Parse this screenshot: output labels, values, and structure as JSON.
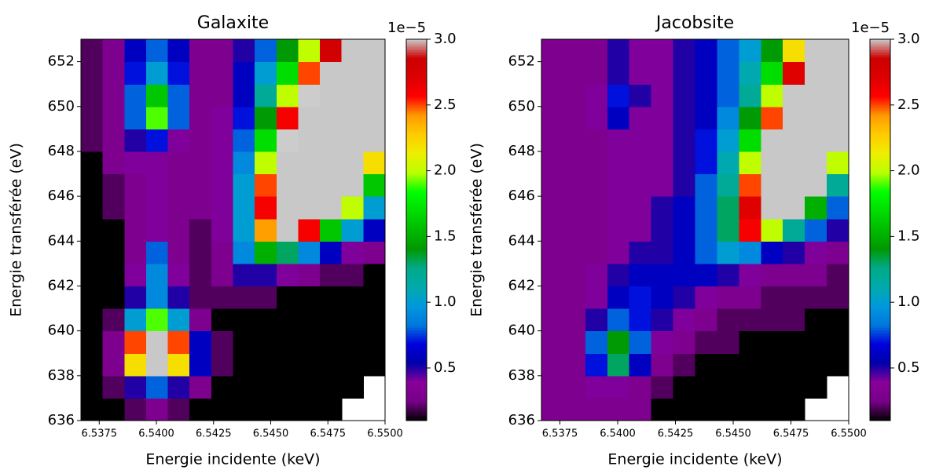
{
  "chart_data": [
    {
      "type": "heatmap",
      "title": "Galaxite",
      "xlabel": "Energie incidente (keV)",
      "ylabel": "Energie transférée (eV)",
      "colormap": "nipy_spectral",
      "over_color": "#c8c8c8",
      "xlim": [
        6.5367,
        6.55
      ],
      "ylim": [
        636,
        653
      ],
      "xticks": [
        6.5375,
        {
          "value": 6.54,
          "label": "6.5400"
        },
        6.5425,
        {
          "value": 6.545,
          "label": "6.5450"
        },
        6.5475,
        {
          "value": 6.55,
          "label": "6.5500"
        }
      ],
      "yticks": [
        636,
        638,
        640,
        642,
        644,
        646,
        648,
        650,
        652
      ],
      "x_edges": [
        6.5367,
        6.53765,
        6.5386,
        6.53955,
        6.5405,
        6.54145,
        6.5424,
        6.54335,
        6.5443,
        6.54525,
        6.5462,
        6.54715,
        6.5481,
        6.54905,
        6.55
      ],
      "y_edges": [
        636,
        637,
        638,
        639,
        640,
        641,
        642,
        643,
        644,
        645,
        646,
        647,
        648,
        649,
        650,
        651,
        652,
        653
      ],
      "clim": [
        0.1,
        3.0
      ],
      "colorbar_offset": "1e−5",
      "cticks": [
        {
          "value": 0.5,
          "label": "0.5"
        },
        {
          "value": 1.0,
          "label": "1.0"
        },
        {
          "value": 1.5,
          "label": "1.5"
        },
        {
          "value": 2.0,
          "label": "2.0"
        },
        {
          "value": 2.5,
          "label": "2.5"
        },
        {
          "value": 3.0,
          "label": "3.0"
        }
      ],
      "values": [
        [
          0.05,
          0.1,
          0.2,
          0.3,
          0.2,
          0.1,
          0.05,
          0.05,
          0.05,
          0.05,
          0.05,
          0.05,
          null,
          null
        ],
        [
          0.05,
          0.2,
          0.5,
          0.8,
          0.5,
          0.3,
          0.05,
          0.05,
          0.05,
          0.05,
          0.05,
          0.05,
          0.05,
          null
        ],
        [
          0.1,
          0.3,
          2.2,
          3.5,
          2.2,
          0.6,
          0.2,
          0.05,
          0.05,
          0.05,
          0.05,
          0.05,
          0.05,
          0.05
        ],
        [
          0.1,
          0.3,
          2.5,
          3.5,
          2.5,
          0.6,
          0.2,
          0.05,
          0.05,
          0.05,
          0.05,
          0.05,
          0.05,
          0.05
        ],
        [
          0.05,
          0.2,
          1.0,
          1.9,
          1.0,
          0.3,
          0.1,
          0.05,
          0.05,
          0.05,
          0.05,
          0.05,
          0.05,
          0.05
        ],
        [
          0.05,
          0.1,
          0.5,
          0.9,
          0.5,
          0.2,
          0.2,
          0.2,
          0.2,
          0.1,
          0.1,
          0.1,
          0.1,
          0.1
        ],
        [
          0.05,
          0.1,
          0.4,
          0.9,
          0.4,
          0.2,
          0.3,
          0.5,
          0.5,
          0.4,
          0.3,
          0.2,
          0.2,
          0.1
        ],
        [
          0.05,
          0.1,
          0.3,
          0.8,
          0.3,
          0.2,
          0.3,
          0.9,
          1.5,
          1.3,
          0.9,
          0.6,
          0.4,
          0.3
        ],
        [
          0.1,
          0.1,
          0.3,
          0.4,
          0.3,
          0.2,
          0.4,
          1.0,
          2.4,
          3.5,
          2.6,
          1.6,
          1.0,
          0.6
        ],
        [
          0.1,
          0.2,
          0.3,
          0.4,
          0.3,
          0.3,
          0.4,
          1.0,
          2.6,
          3.5,
          3.5,
          3.5,
          2.0,
          1.0
        ],
        [
          0.1,
          0.2,
          0.3,
          0.4,
          0.3,
          0.3,
          0.4,
          1.0,
          2.5,
          3.5,
          3.5,
          3.5,
          3.5,
          1.6
        ],
        [
          0.1,
          0.3,
          0.4,
          0.4,
          0.3,
          0.3,
          0.4,
          0.9,
          2.0,
          3.5,
          3.5,
          3.5,
          3.5,
          2.2
        ],
        [
          0.2,
          0.3,
          0.5,
          0.7,
          0.4,
          0.3,
          0.4,
          0.8,
          1.7,
          3.0,
          3.5,
          3.5,
          3.5,
          3.5
        ],
        [
          0.2,
          0.3,
          0.8,
          1.9,
          0.8,
          0.3,
          0.4,
          0.7,
          1.4,
          2.6,
          3.5,
          3.5,
          3.5,
          3.5
        ],
        [
          0.2,
          0.3,
          0.8,
          1.6,
          0.8,
          0.3,
          0.3,
          0.6,
          1.2,
          2.0,
          3.0,
          3.5,
          3.5,
          3.5
        ],
        [
          0.2,
          0.3,
          0.7,
          1.0,
          0.7,
          0.3,
          0.3,
          0.6,
          1.0,
          1.7,
          2.5,
          3.5,
          3.5,
          3.5
        ],
        [
          0.2,
          0.3,
          0.6,
          0.8,
          0.6,
          0.3,
          0.3,
          0.5,
          0.8,
          1.4,
          2.0,
          2.8,
          3.5,
          3.5
        ]
      ]
    },
    {
      "type": "heatmap",
      "title": "Jacobsite",
      "xlabel": "Energie incidente (keV)",
      "ylabel": "Energie transférée (eV)",
      "colormap": "nipy_spectral",
      "over_color": "#c8c8c8",
      "xlim": [
        6.5367,
        6.55
      ],
      "ylim": [
        636,
        653
      ],
      "xticks": [
        6.5375,
        {
          "value": 6.54,
          "label": "6.5400"
        },
        6.5425,
        {
          "value": 6.545,
          "label": "6.5450"
        },
        6.5475,
        {
          "value": 6.55,
          "label": "6.5500"
        }
      ],
      "yticks": [
        636,
        638,
        640,
        642,
        644,
        646,
        648,
        650,
        652
      ],
      "x_edges": [
        6.5367,
        6.53765,
        6.5386,
        6.53955,
        6.5405,
        6.54145,
        6.5424,
        6.54335,
        6.5443,
        6.54525,
        6.5462,
        6.54715,
        6.5481,
        6.54905,
        6.55
      ],
      "y_edges": [
        636,
        637,
        638,
        639,
        640,
        641,
        642,
        643,
        644,
        645,
        646,
        647,
        648,
        649,
        650,
        651,
        652,
        653
      ],
      "clim": [
        0.1,
        3.0
      ],
      "colorbar_offset": "1e−5",
      "cticks": [
        {
          "value": 0.5,
          "label": "0.5"
        },
        {
          "value": 1.0,
          "label": "1.0"
        },
        {
          "value": 1.5,
          "label": "1.5"
        },
        {
          "value": 2.0,
          "label": "2.0"
        },
        {
          "value": 2.5,
          "label": "2.5"
        },
        {
          "value": 3.0,
          "label": "3.0"
        }
      ],
      "values": [
        [
          0.3,
          0.3,
          0.3,
          0.3,
          0.3,
          0.1,
          0.1,
          0.1,
          0.1,
          0.1,
          0.1,
          0.1,
          null,
          null
        ],
        [
          0.3,
          0.3,
          0.4,
          0.4,
          0.3,
          0.2,
          0.1,
          0.1,
          0.1,
          0.1,
          0.1,
          0.1,
          0.1,
          null
        ],
        [
          0.3,
          0.3,
          0.7,
          1.3,
          0.6,
          0.3,
          0.2,
          0.1,
          0.1,
          0.1,
          0.1,
          0.1,
          0.1,
          0.1
        ],
        [
          0.3,
          0.3,
          0.8,
          1.4,
          0.8,
          0.4,
          0.3,
          0.2,
          0.2,
          0.1,
          0.1,
          0.1,
          0.1,
          0.1
        ],
        [
          0.3,
          0.3,
          0.5,
          0.8,
          0.7,
          0.5,
          0.4,
          0.3,
          0.2,
          0.2,
          0.2,
          0.2,
          0.1,
          0.1
        ],
        [
          0.3,
          0.3,
          0.4,
          0.6,
          0.7,
          0.6,
          0.5,
          0.4,
          0.3,
          0.3,
          0.2,
          0.2,
          0.2,
          0.2
        ],
        [
          0.3,
          0.3,
          0.4,
          0.5,
          0.6,
          0.6,
          0.6,
          0.6,
          0.5,
          0.4,
          0.3,
          0.3,
          0.3,
          0.2
        ],
        [
          0.3,
          0.3,
          0.3,
          0.4,
          0.5,
          0.5,
          0.6,
          0.8,
          1.0,
          0.9,
          0.6,
          0.5,
          0.4,
          0.3
        ],
        [
          0.3,
          0.3,
          0.3,
          0.4,
          0.4,
          0.5,
          0.6,
          0.8,
          1.3,
          2.6,
          2.0,
          1.2,
          0.8,
          0.5
        ],
        [
          0.3,
          0.3,
          0.3,
          0.4,
          0.4,
          0.5,
          0.6,
          0.8,
          1.3,
          2.7,
          3.5,
          3.5,
          1.5,
          0.8
        ],
        [
          0.3,
          0.3,
          0.3,
          0.4,
          0.4,
          0.4,
          0.5,
          0.8,
          1.2,
          2.5,
          3.5,
          3.5,
          3.5,
          1.2
        ],
        [
          0.3,
          0.3,
          0.3,
          0.4,
          0.4,
          0.4,
          0.5,
          0.7,
          1.1,
          2.0,
          3.5,
          3.5,
          3.5,
          2.0
        ],
        [
          0.3,
          0.3,
          0.3,
          0.4,
          0.4,
          0.4,
          0.5,
          0.7,
          1.0,
          1.7,
          3.5,
          3.5,
          3.5,
          3.5
        ],
        [
          0.3,
          0.3,
          0.4,
          0.6,
          0.4,
          0.4,
          0.5,
          0.6,
          0.9,
          1.4,
          2.5,
          3.5,
          3.5,
          3.5
        ],
        [
          0.3,
          0.3,
          0.4,
          0.7,
          0.5,
          0.4,
          0.5,
          0.6,
          0.8,
          1.2,
          2.0,
          3.5,
          3.5,
          3.5
        ],
        [
          0.3,
          0.3,
          0.3,
          0.5,
          0.4,
          0.4,
          0.5,
          0.6,
          0.8,
          1.1,
          1.7,
          2.7,
          3.5,
          3.5
        ],
        [
          0.3,
          0.3,
          0.3,
          0.5,
          0.4,
          0.4,
          0.5,
          0.6,
          0.8,
          1.0,
          1.4,
          2.2,
          3.5,
          3.5
        ]
      ]
    }
  ]
}
